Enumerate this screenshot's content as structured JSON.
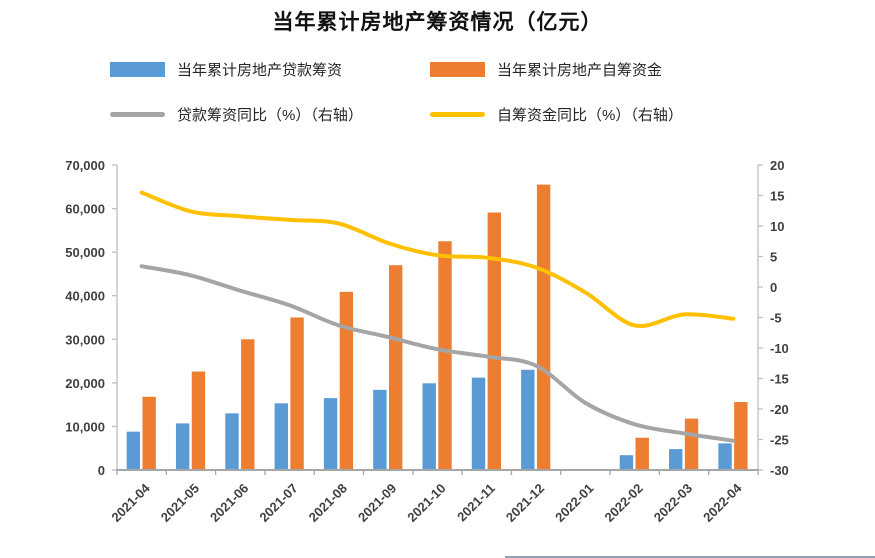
{
  "page": {
    "background": "#ffffff"
  },
  "chart_data": {
    "type": "bar",
    "subtype": "grouped-bars-with-lines",
    "title": "当年累计房地产筹资情况（亿元）",
    "grid": false,
    "legend_position": "top",
    "categories": [
      "2021-04",
      "2021-05",
      "2021-06",
      "2021-07",
      "2021-08",
      "2021-09",
      "2021-10",
      "2021-11",
      "2021-12",
      "2022-01",
      "2022-02",
      "2022-03",
      "2022-04"
    ],
    "series": [
      {
        "name": "当年累计房地产贷款筹资",
        "type": "bar",
        "axis": "left",
        "color": "#5B9BD5",
        "values": [
          8800,
          10700,
          13000,
          15300,
          16500,
          18400,
          19900,
          21200,
          23000,
          null,
          3400,
          4800,
          6100
        ]
      },
      {
        "name": "当年累计房地产自筹资金",
        "type": "bar",
        "axis": "left",
        "color": "#ED7D31",
        "values": [
          16800,
          22600,
          30000,
          35000,
          40900,
          47000,
          52500,
          59100,
          65500,
          null,
          7400,
          11800,
          15600
        ]
      },
      {
        "name": "贷款筹资同比（%）（右轴）",
        "type": "line",
        "axis": "right",
        "color": "#A5A5A5",
        "values": [
          3.4,
          1.9,
          -0.6,
          -3.0,
          -6.3,
          -8.2,
          -10.2,
          -11.4,
          -12.9,
          -19.0,
          -22.5,
          -24.0,
          -25.2
        ]
      },
      {
        "name": "自筹资金同比（%）（右轴）",
        "type": "line",
        "axis": "right",
        "color": "#FFC000",
        "values": [
          15.5,
          12.4,
          11.6,
          11.0,
          10.4,
          7.2,
          5.2,
          4.8,
          3.2,
          -0.9,
          -6.3,
          -4.5,
          -5.2
        ]
      }
    ],
    "left_axis": {
      "min": 0,
      "max": 70000,
      "step": 10000,
      "tick_labels": [
        "70,000",
        "60,000",
        "50,000",
        "40,000",
        "30,000",
        "20,000",
        "10,000",
        "0"
      ]
    },
    "right_axis": {
      "min": -30,
      "max": 20,
      "step": 5,
      "tick_labels": [
        "20",
        "15",
        "10",
        "5",
        "0",
        "-5",
        "-10",
        "-15",
        "-20",
        "-25",
        "-30"
      ]
    },
    "axis_color": "#BFBFBF",
    "baseline_color": "#A6A6A6",
    "label_color": "#404040"
  }
}
